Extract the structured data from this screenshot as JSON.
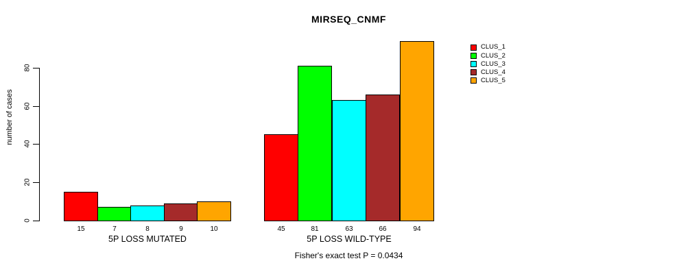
{
  "chart_data": {
    "type": "bar",
    "title": "MIRSEQ_CNMF",
    "ylabel": "number of cases",
    "footer": "Fisher's exact test P = 0.0434",
    "categories": [
      "5P LOSS MUTATED",
      "5P LOSS WILD-TYPE"
    ],
    "series": [
      {
        "name": "CLUS_1",
        "color": "#FF0000",
        "values": [
          15,
          45
        ]
      },
      {
        "name": "CLUS_2",
        "color": "#00FF00",
        "values": [
          7,
          81
        ]
      },
      {
        "name": "CLUS_3",
        "color": "#00FFFF",
        "values": [
          8,
          63
        ]
      },
      {
        "name": "CLUS_4",
        "color": "#A52A2A",
        "values": [
          9,
          66
        ]
      },
      {
        "name": "CLUS_5",
        "color": "#FFA500",
        "values": [
          10,
          94
        ]
      }
    ],
    "yticks": [
      0,
      20,
      40,
      60,
      80
    ],
    "ylim": [
      0,
      97
    ],
    "grid": false,
    "legend_position": "right",
    "bar_border_color": "#000000",
    "background": "#FFFFFF",
    "value_labels_shown": true
  }
}
